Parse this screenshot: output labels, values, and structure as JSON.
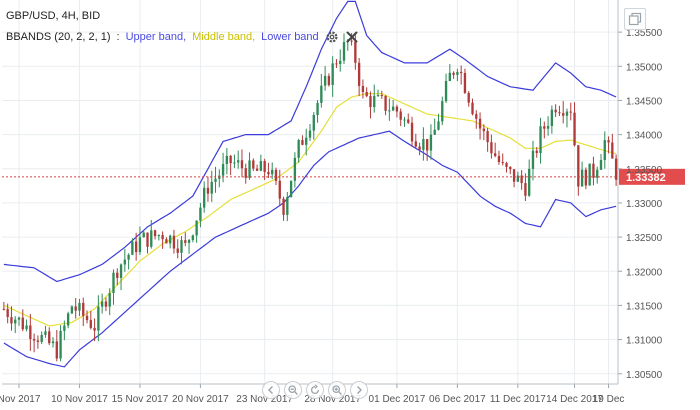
{
  "header": {
    "symbol_title": "GBP/USD, 4H, BID"
  },
  "indicator": {
    "name": "BBANDS (20, 2, 2, 1)",
    "separator": ":",
    "upper_label": "Upper band",
    "middle_label": "Middle band",
    "lower_label": "Lower band",
    "comma": ",",
    "settings_icon": "gear-icon",
    "remove_icon": "close-icon"
  },
  "controls": {
    "fullscreen_icon": "fullscreen-icon",
    "nav_icons": [
      "chevron-left-icon",
      "zoom-out-icon",
      "reset-icon",
      "zoom-in-icon",
      "chevron-right-icon"
    ]
  },
  "colors": {
    "up_candle": "#2e8b57",
    "down_candle": "#b03a3a",
    "upper_band": "#3b3bdc",
    "middle_band": "#e6df3a",
    "lower_band": "#3b3bdc",
    "price_line": "#d94040",
    "price_badge": "#e24c4c",
    "grid": "#e9edf0"
  },
  "chart_data": {
    "type": "candlestick",
    "current_price": "1.33382",
    "y_ticks": [
      "1.35500",
      "1.35000",
      "1.34500",
      "1.34000",
      "1.33500",
      "1.33000",
      "1.32500",
      "1.32000",
      "1.31500",
      "1.31000",
      "1.30500"
    ],
    "x_ticks": [
      "Nov 2017",
      "10 Nov 2017",
      "15 Nov 2017",
      "20 Nov 2017",
      "23 Nov 2017",
      "28 Nov 2017",
      "01 Dec 2017",
      "06 Dec 2017",
      "11 Dec 2017",
      "14 Dec 2017",
      "19 Dec"
    ],
    "ylim": [
      1.3035,
      1.3597
    ],
    "anchors": [
      [
        0,
        1.3145
      ],
      [
        8,
        1.311
      ],
      [
        14,
        1.3085
      ],
      [
        18,
        1.315
      ],
      [
        24,
        1.312
      ],
      [
        30,
        1.3205
      ],
      [
        36,
        1.3245
      ],
      [
        42,
        1.3255
      ],
      [
        48,
        1.3235
      ],
      [
        54,
        1.3325
      ],
      [
        60,
        1.336
      ],
      [
        66,
        1.3345
      ],
      [
        70,
        1.335
      ],
      [
        74,
        1.3295
      ],
      [
        78,
        1.338
      ],
      [
        84,
        1.346
      ],
      [
        88,
        1.351
      ],
      [
        91,
        1.3535
      ],
      [
        93,
        1.351
      ],
      [
        95,
        1.3455
      ],
      [
        100,
        1.3445
      ],
      [
        104,
        1.3435
      ],
      [
        110,
        1.339
      ],
      [
        113,
        1.3385
      ],
      [
        118,
        1.3485
      ],
      [
        120,
        1.3505
      ],
      [
        126,
        1.341
      ],
      [
        132,
        1.335
      ],
      [
        138,
        1.3325
      ],
      [
        142,
        1.34
      ],
      [
        146,
        1.3445
      ],
      [
        150,
        1.344
      ],
      [
        152,
        1.3335
      ],
      [
        156,
        1.3345
      ],
      [
        159,
        1.339
      ],
      [
        162,
        1.3345
      ]
    ],
    "candle_count": 163,
    "upper_band": [
      [
        0,
        1.321
      ],
      [
        8,
        1.3205
      ],
      [
        14,
        1.3185
      ],
      [
        20,
        1.3195
      ],
      [
        26,
        1.321
      ],
      [
        32,
        1.3235
      ],
      [
        38,
        1.3265
      ],
      [
        44,
        1.3285
      ],
      [
        50,
        1.331
      ],
      [
        54,
        1.335
      ],
      [
        58,
        1.339
      ],
      [
        64,
        1.34
      ],
      [
        70,
        1.34
      ],
      [
        76,
        1.342
      ],
      [
        80,
        1.347
      ],
      [
        84,
        1.3525
      ],
      [
        88,
        1.357
      ],
      [
        91,
        1.3595
      ],
      [
        93,
        1.3595
      ],
      [
        96,
        1.3545
      ],
      [
        100,
        1.352
      ],
      [
        106,
        1.3505
      ],
      [
        112,
        1.3505
      ],
      [
        118,
        1.3525
      ],
      [
        122,
        1.351
      ],
      [
        128,
        1.3485
      ],
      [
        134,
        1.347
      ],
      [
        140,
        1.3465
      ],
      [
        146,
        1.3505
      ],
      [
        150,
        1.349
      ],
      [
        154,
        1.347
      ],
      [
        158,
        1.3465
      ],
      [
        162,
        1.3455
      ]
    ],
    "middle_band": [
      [
        0,
        1.315
      ],
      [
        6,
        1.3135
      ],
      [
        12,
        1.312
      ],
      [
        18,
        1.3125
      ],
      [
        24,
        1.3145
      ],
      [
        30,
        1.318
      ],
      [
        36,
        1.3215
      ],
      [
        42,
        1.324
      ],
      [
        48,
        1.3258
      ],
      [
        54,
        1.328
      ],
      [
        60,
        1.3305
      ],
      [
        66,
        1.332
      ],
      [
        72,
        1.3335
      ],
      [
        78,
        1.336
      ],
      [
        84,
        1.3405
      ],
      [
        88,
        1.344
      ],
      [
        92,
        1.3455
      ],
      [
        96,
        1.346
      ],
      [
        100,
        1.346
      ],
      [
        106,
        1.3445
      ],
      [
        112,
        1.343
      ],
      [
        118,
        1.3425
      ],
      [
        124,
        1.342
      ],
      [
        128,
        1.341
      ],
      [
        134,
        1.3395
      ],
      [
        138,
        1.338
      ],
      [
        142,
        1.338
      ],
      [
        146,
        1.339
      ],
      [
        150,
        1.3392
      ],
      [
        154,
        1.3385
      ],
      [
        158,
        1.3378
      ],
      [
        162,
        1.3372
      ]
    ],
    "lower_band": [
      [
        0,
        1.3095
      ],
      [
        6,
        1.3075
      ],
      [
        12,
        1.3065
      ],
      [
        16,
        1.306
      ],
      [
        20,
        1.3085
      ],
      [
        26,
        1.311
      ],
      [
        32,
        1.314
      ],
      [
        38,
        1.317
      ],
      [
        44,
        1.32
      ],
      [
        50,
        1.3225
      ],
      [
        56,
        1.325
      ],
      [
        62,
        1.3265
      ],
      [
        66,
        1.3275
      ],
      [
        70,
        1.3285
      ],
      [
        74,
        1.33
      ],
      [
        78,
        1.3325
      ],
      [
        82,
        1.3355
      ],
      [
        86,
        1.3375
      ],
      [
        90,
        1.3385
      ],
      [
        94,
        1.3395
      ],
      [
        98,
        1.34
      ],
      [
        102,
        1.3405
      ],
      [
        106,
        1.339
      ],
      [
        112,
        1.337
      ],
      [
        116,
        1.3355
      ],
      [
        120,
        1.3345
      ],
      [
        126,
        1.331
      ],
      [
        130,
        1.3295
      ],
      [
        134,
        1.3285
      ],
      [
        138,
        1.327
      ],
      [
        142,
        1.3265
      ],
      [
        146,
        1.3305
      ],
      [
        150,
        1.33
      ],
      [
        154,
        1.328
      ],
      [
        158,
        1.329
      ],
      [
        162,
        1.3295
      ]
    ],
    "grid": true
  }
}
